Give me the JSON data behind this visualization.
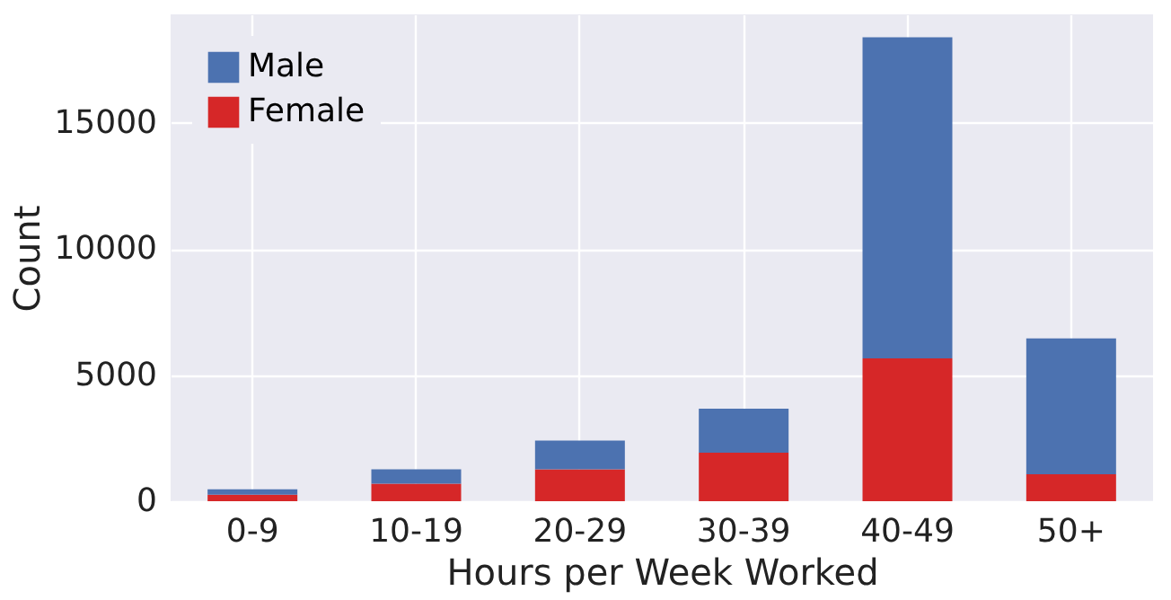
{
  "chart_data": {
    "type": "bar",
    "stacked": true,
    "xlabel": "Hours per Week Worked",
    "ylabel": "Count",
    "categories": [
      "0-9",
      "10-19",
      "20-29",
      "30-39",
      "40-49",
      "50+"
    ],
    "series": [
      {
        "name": "Female",
        "color": "#d62728",
        "values": [
          260,
          690,
          1260,
          1920,
          5660,
          1070
        ]
      },
      {
        "name": "Male",
        "color": "#4c72b0",
        "values": [
          210,
          570,
          1140,
          1750,
          12730,
          5380
        ]
      }
    ],
    "ylim": [
      0,
      19300
    ],
    "yticks": [
      0,
      5000,
      10000,
      15000
    ],
    "grid": true,
    "legend": "top left"
  }
}
